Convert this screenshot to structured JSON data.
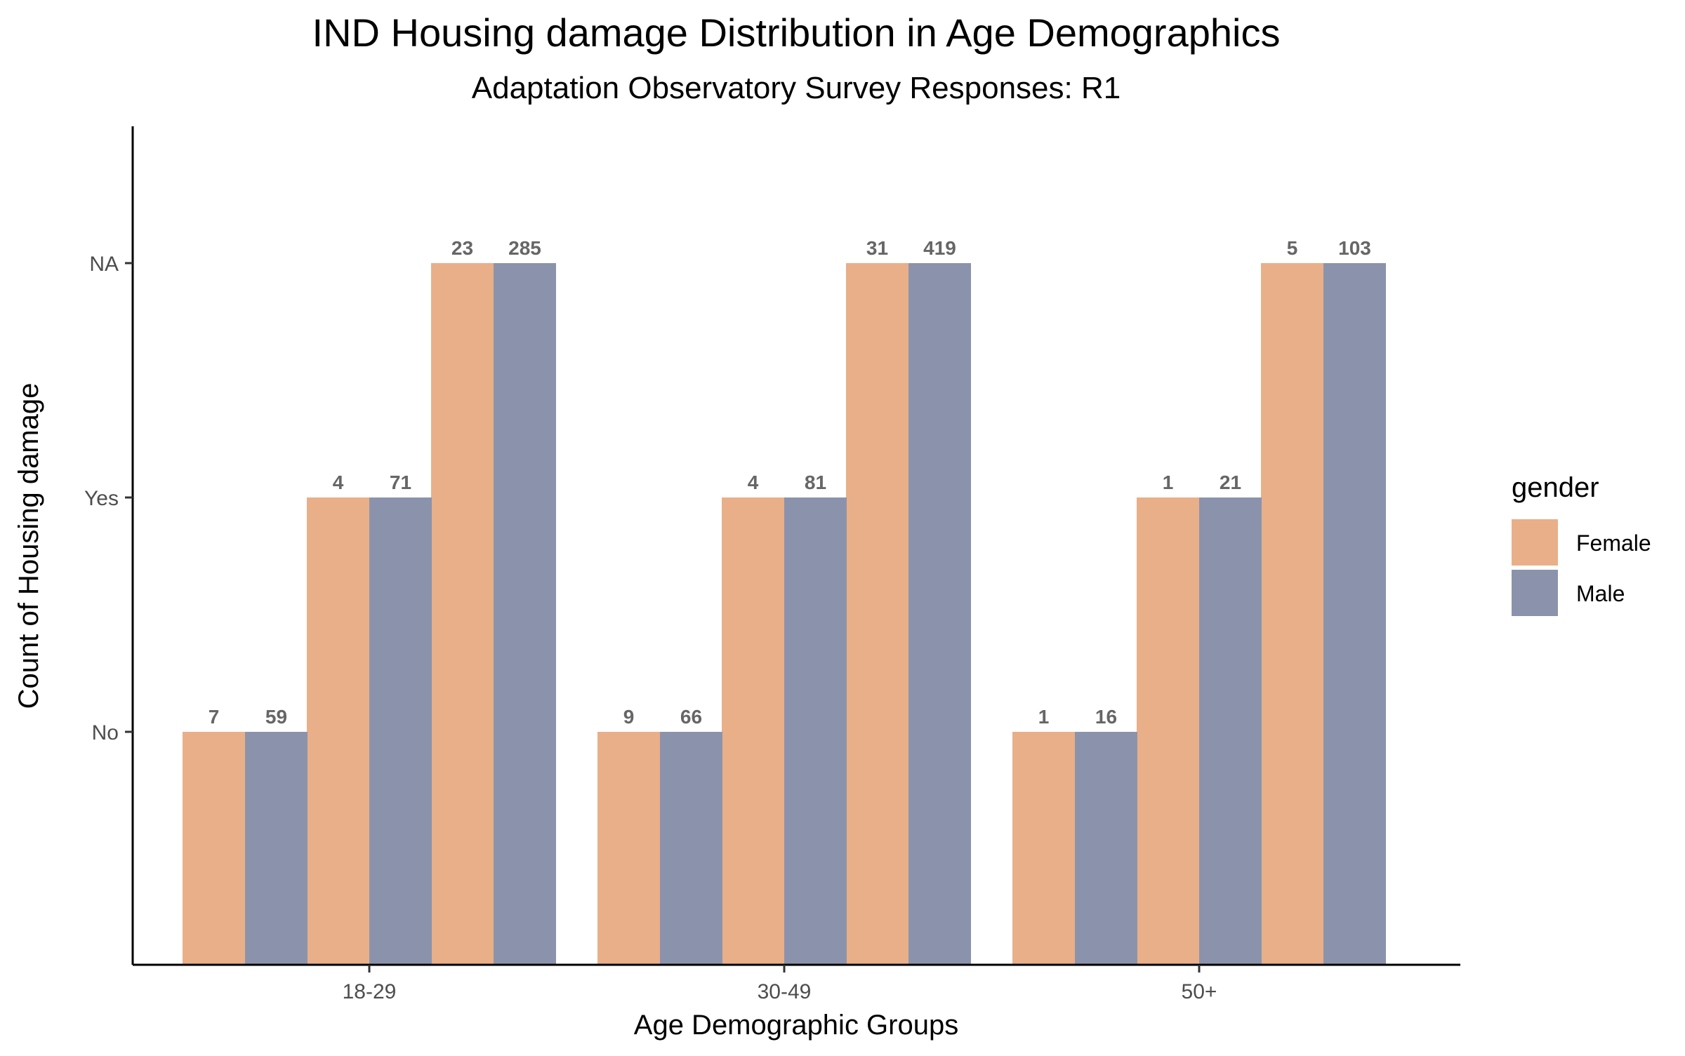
{
  "chart_data": {
    "type": "bar",
    "title": "IND Housing damage Distribution in Age Demographics",
    "subtitle": "Adaptation Observatory Survey Responses: R1",
    "xlabel": "Age Demographic Groups",
    "ylabel": "Count of Housing damage",
    "categories": [
      "18-29",
      "30-49",
      "50+"
    ],
    "y_categories": [
      "No",
      "Yes",
      "NA"
    ],
    "grid": false,
    "legend": {
      "title": "gender",
      "position": "right",
      "entries": [
        "Female",
        "Male"
      ]
    },
    "series": [
      {
        "name": "Female",
        "color": "#E9AF89",
        "responses": [
          "No",
          "Yes",
          "NA"
        ],
        "counts": [
          [
            7,
            4,
            23
          ],
          [
            9,
            4,
            31
          ],
          [
            1,
            1,
            5
          ]
        ]
      },
      {
        "name": "Male",
        "color": "#8B93AC",
        "responses": [
          "No",
          "Yes",
          "NA"
        ],
        "counts": [
          [
            59,
            71,
            285
          ],
          [
            66,
            81,
            419
          ],
          [
            16,
            21,
            103
          ]
        ]
      }
    ]
  }
}
